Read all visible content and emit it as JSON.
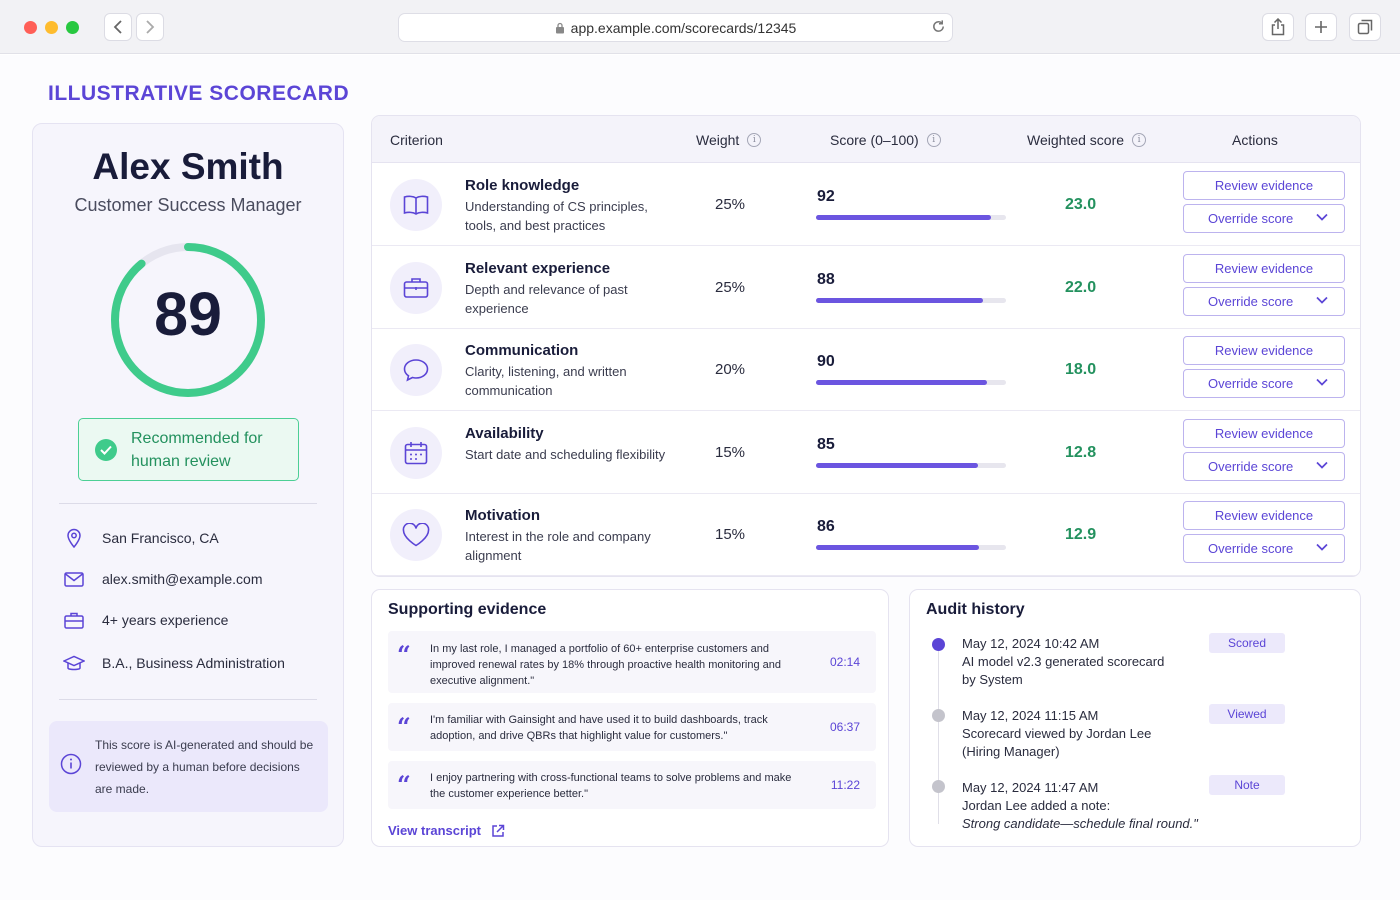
{
  "browser": {
    "url": "app.example.com/scorecards/12345"
  },
  "page": {
    "header": "ILLUSTRATIVE SCORECARD"
  },
  "candidate": {
    "name": "Alex Smith",
    "role": "Customer Success Manager",
    "overall_score": "89",
    "overall_score_fraction": 0.89,
    "recommendation": "Recommended for human review",
    "location": "San Francisco, CA",
    "email": "alex.smith@example.com",
    "experience": "4+ years experience",
    "education": "B.A., Business Administration",
    "disclaimer": "This score is AI-generated and should be reviewed by a human before decisions are made."
  },
  "table": {
    "headers": {
      "criterion": "Criterion",
      "weight": "Weight",
      "score": "Score (0–100)",
      "weighted": "Weighted score",
      "actions": "Actions"
    },
    "review_label": "Review evidence",
    "override_label": "Override score",
    "rows": [
      {
        "icon": "book-icon",
        "title": "Role knowledge",
        "desc": "Understanding of CS principles, tools, and best practices",
        "weight": "25%",
        "score": "92",
        "score_value": 92,
        "weighted": "23.0"
      },
      {
        "icon": "briefcase-icon",
        "title": "Relevant experience",
        "desc": "Depth and relevance of past experience",
        "weight": "25%",
        "score": "88",
        "score_value": 88,
        "weighted": "22.0"
      },
      {
        "icon": "chat-bubble-icon",
        "title": "Communication",
        "desc": "Clarity, listening, and written communication",
        "weight": "20%",
        "score": "90",
        "score_value": 90,
        "weighted": "18.0"
      },
      {
        "icon": "calendar-icon",
        "title": "Availability",
        "desc": "Start date and scheduling flexibility",
        "weight": "15%",
        "score": "85",
        "score_value": 85,
        "weighted": "12.8"
      },
      {
        "icon": "heart-icon",
        "title": "Motivation",
        "desc": "Interest in the role and company alignment",
        "weight": "15%",
        "score": "86",
        "score_value": 86,
        "weighted": "12.9"
      }
    ]
  },
  "evidence": {
    "title": "Supporting evidence",
    "quotes": [
      {
        "text": "In my last role, I managed a portfolio of 60+ enterprise customers and improved renewal rates by 18% through proactive health monitoring and executive alignment.\"",
        "time": "02:14"
      },
      {
        "text": "I'm familiar with Gainsight and have used it to build dashboards, track adoption, and drive QBRs that highlight value for customers.\"",
        "time": "06:37"
      },
      {
        "text": "I enjoy partnering with cross-functional teams to solve problems and make the customer experience better.\"",
        "time": "11:22"
      }
    ],
    "link": "View transcript"
  },
  "audit": {
    "title": "Audit history",
    "entries": [
      {
        "time": "May 12, 2024 10:42 AM",
        "line1": "AI model v2.3 generated scorecard",
        "line2": "by System",
        "tag": "Scored",
        "dot_color": "#5b45d6"
      },
      {
        "time": "May 12, 2024 11:15 AM",
        "line1": "Scorecard viewed by Jordan Lee",
        "line2": "(Hiring Manager)",
        "tag": "Viewed",
        "dot_color": "#c4c4cc"
      },
      {
        "time": "May 12, 2024 11:47 AM",
        "line1": "Jordan Lee added a note:",
        "line2": "Strong candidate—schedule final round.\"",
        "tag": "Note",
        "dot_color": "#c4c4cc"
      }
    ]
  },
  "colors": {
    "accent": "#5b45d6",
    "success": "#3fcb8b",
    "score_green": "#23915e"
  }
}
